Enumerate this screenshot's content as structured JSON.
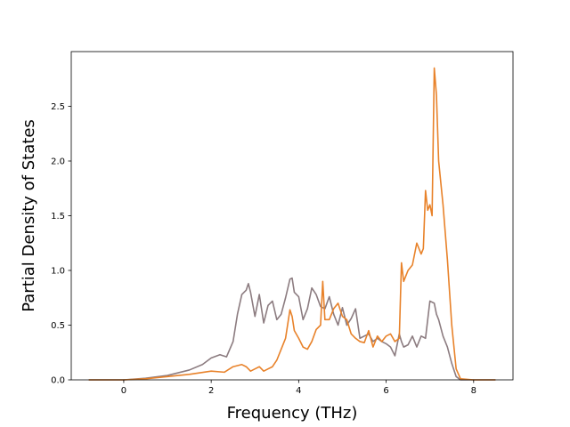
{
  "chart_data": {
    "type": "line",
    "title": "",
    "xlabel": "Frequency (THz)",
    "ylabel": "Partial Density of States",
    "xlim": [
      -1.2,
      8.9
    ],
    "ylim": [
      0.0,
      3.0
    ],
    "x_ticks": [
      0,
      2,
      4,
      6,
      8
    ],
    "x_tick_labels": [
      "0",
      "2",
      "4",
      "6",
      "8"
    ],
    "y_ticks": [
      0.0,
      0.5,
      1.0,
      1.5,
      2.0,
      2.5
    ],
    "y_tick_labels": [
      "0.0",
      "0.5",
      "1.0",
      "1.5",
      "2.0",
      "2.5"
    ],
    "grid": false,
    "legend": "none",
    "series": [
      {
        "color": "#8c7c80",
        "x": [
          -0.8,
          0.0,
          0.5,
          1.0,
          1.5,
          1.8,
          2.0,
          2.2,
          2.35,
          2.5,
          2.6,
          2.7,
          2.8,
          2.85,
          2.9,
          3.0,
          3.1,
          3.2,
          3.3,
          3.4,
          3.5,
          3.6,
          3.7,
          3.8,
          3.85,
          3.9,
          4.0,
          4.1,
          4.2,
          4.3,
          4.4,
          4.5,
          4.6,
          4.7,
          4.8,
          4.9,
          5.0,
          5.1,
          5.2,
          5.3,
          5.4,
          5.5,
          5.6,
          5.7,
          5.8,
          5.9,
          6.0,
          6.1,
          6.2,
          6.3,
          6.35,
          6.4,
          6.5,
          6.6,
          6.7,
          6.8,
          6.9,
          7.0,
          7.1,
          7.15,
          7.2,
          7.3,
          7.4,
          7.5,
          7.6,
          7.7,
          7.8,
          8.0,
          8.5
        ],
        "values": [
          0.0,
          0.0,
          0.015,
          0.04,
          0.09,
          0.14,
          0.2,
          0.23,
          0.21,
          0.35,
          0.6,
          0.78,
          0.82,
          0.88,
          0.8,
          0.58,
          0.78,
          0.52,
          0.68,
          0.72,
          0.55,
          0.6,
          0.75,
          0.92,
          0.93,
          0.8,
          0.76,
          0.55,
          0.65,
          0.84,
          0.78,
          0.67,
          0.65,
          0.76,
          0.6,
          0.5,
          0.66,
          0.5,
          0.56,
          0.65,
          0.38,
          0.4,
          0.42,
          0.35,
          0.38,
          0.35,
          0.33,
          0.3,
          0.22,
          0.42,
          0.35,
          0.3,
          0.32,
          0.4,
          0.3,
          0.4,
          0.38,
          0.72,
          0.7,
          0.6,
          0.55,
          0.4,
          0.3,
          0.15,
          0.03,
          0.0,
          0.0,
          0.0,
          0.0
        ]
      },
      {
        "color": "#e8822a",
        "x": [
          -0.8,
          0.0,
          0.5,
          1.0,
          1.5,
          2.0,
          2.3,
          2.5,
          2.7,
          2.8,
          2.9,
          3.0,
          3.1,
          3.2,
          3.3,
          3.4,
          3.5,
          3.6,
          3.7,
          3.8,
          3.85,
          3.9,
          4.0,
          4.1,
          4.2,
          4.3,
          4.4,
          4.5,
          4.55,
          4.6,
          4.7,
          4.8,
          4.9,
          5.0,
          5.1,
          5.2,
          5.3,
          5.4,
          5.5,
          5.6,
          5.7,
          5.8,
          5.9,
          6.0,
          6.1,
          6.2,
          6.3,
          6.35,
          6.4,
          6.45,
          6.5,
          6.6,
          6.7,
          6.8,
          6.85,
          6.9,
          6.95,
          7.0,
          7.05,
          7.1,
          7.15,
          7.2,
          7.3,
          7.4,
          7.5,
          7.6,
          7.7,
          8.0,
          8.5
        ],
        "values": [
          0.0,
          0.0,
          0.01,
          0.03,
          0.05,
          0.08,
          0.07,
          0.12,
          0.14,
          0.12,
          0.08,
          0.1,
          0.12,
          0.08,
          0.1,
          0.12,
          0.18,
          0.28,
          0.38,
          0.64,
          0.58,
          0.45,
          0.38,
          0.3,
          0.28,
          0.35,
          0.46,
          0.5,
          0.9,
          0.55,
          0.55,
          0.65,
          0.7,
          0.58,
          0.55,
          0.42,
          0.38,
          0.35,
          0.34,
          0.45,
          0.3,
          0.4,
          0.35,
          0.4,
          0.42,
          0.35,
          0.38,
          1.07,
          0.9,
          0.95,
          1.0,
          1.05,
          1.25,
          1.15,
          1.2,
          1.73,
          1.55,
          1.6,
          1.5,
          2.85,
          2.6,
          2.0,
          1.6,
          1.1,
          0.5,
          0.1,
          0.01,
          0.0,
          0.0
        ]
      }
    ]
  }
}
